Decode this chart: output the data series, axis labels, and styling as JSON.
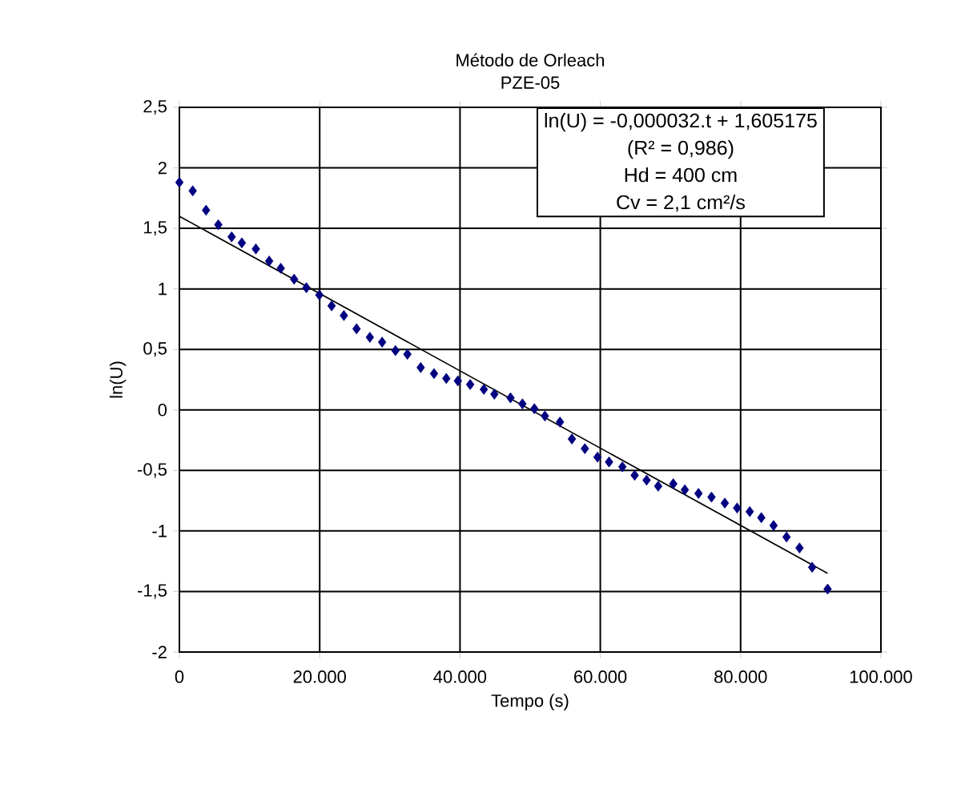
{
  "chart_data": {
    "type": "scatter",
    "title": "Método de Orleach",
    "subtitle": "PZE-05",
    "xlabel": "Tempo (s)",
    "ylabel": "ln(U)",
    "xlim": [
      0,
      100000
    ],
    "ylim": [
      -2,
      2.5
    ],
    "xticks": [
      0,
      {
        "value": 20000,
        "label": "20.000"
      },
      {
        "value": 40000,
        "label": "40.000"
      },
      {
        "value": 60000,
        "label": "60.000"
      },
      {
        "value": 80000,
        "label": "80.000"
      },
      {
        "value": 100000,
        "label": "100.000"
      }
    ],
    "yticks": [
      -2,
      {
        "value": -1.5,
        "label": "-1,5"
      },
      -1,
      {
        "value": -0.5,
        "label": "-0,5"
      },
      0,
      {
        "value": 0.5,
        "label": "0,5"
      },
      1,
      {
        "value": 1.5,
        "label": "1,5"
      },
      2,
      {
        "value": 2.5,
        "label": "2,5"
      }
    ],
    "grid": true,
    "annotations": [
      "ln(U) = -0,000032.t + 1,605175",
      "(R² = 0,986)",
      "Hd = 400 cm",
      "Cv = 2,1 cm²/s"
    ],
    "series": [
      {
        "color": "#000080",
        "marker": "diamond",
        "x": [
          0,
          1900,
          3800,
          5550,
          7450,
          8900,
          10900,
          12800,
          14450,
          16350,
          18100,
          19950,
          21700,
          23450,
          25250,
          27150,
          28900,
          30800,
          32500,
          34400,
          36300,
          38050,
          39700,
          41450,
          43400,
          44900,
          47200,
          48900,
          50600,
          52100,
          54250,
          55950,
          57800,
          59600,
          61250,
          63150,
          64900,
          66600,
          68250,
          70400,
          72050,
          74000,
          75850,
          77750,
          79500,
          81300,
          82950,
          84700,
          86550,
          88400,
          90200,
          92400
        ],
        "values": [
          1.88,
          1.81,
          1.65,
          1.53,
          1.43,
          1.38,
          1.33,
          1.23,
          1.17,
          1.08,
          1.01,
          0.95,
          0.86,
          0.78,
          0.67,
          0.6,
          0.56,
          0.49,
          0.46,
          0.35,
          0.3,
          0.26,
          0.24,
          0.21,
          0.17,
          0.13,
          0.1,
          0.05,
          0.01,
          -0.05,
          -0.1,
          -0.24,
          -0.32,
          -0.39,
          -0.43,
          -0.47,
          -0.54,
          -0.58,
          -0.63,
          -0.61,
          -0.66,
          -0.69,
          -0.72,
          -0.77,
          -0.81,
          -0.84,
          -0.89,
          -0.955,
          -1.05,
          -1.14,
          -1.3,
          -1.48
        ]
      },
      {
        "type": "line",
        "color": "#000000",
        "marker": "none",
        "x": [
          0,
          92400
        ],
        "values": [
          1.6,
          -1.35
        ]
      }
    ]
  }
}
